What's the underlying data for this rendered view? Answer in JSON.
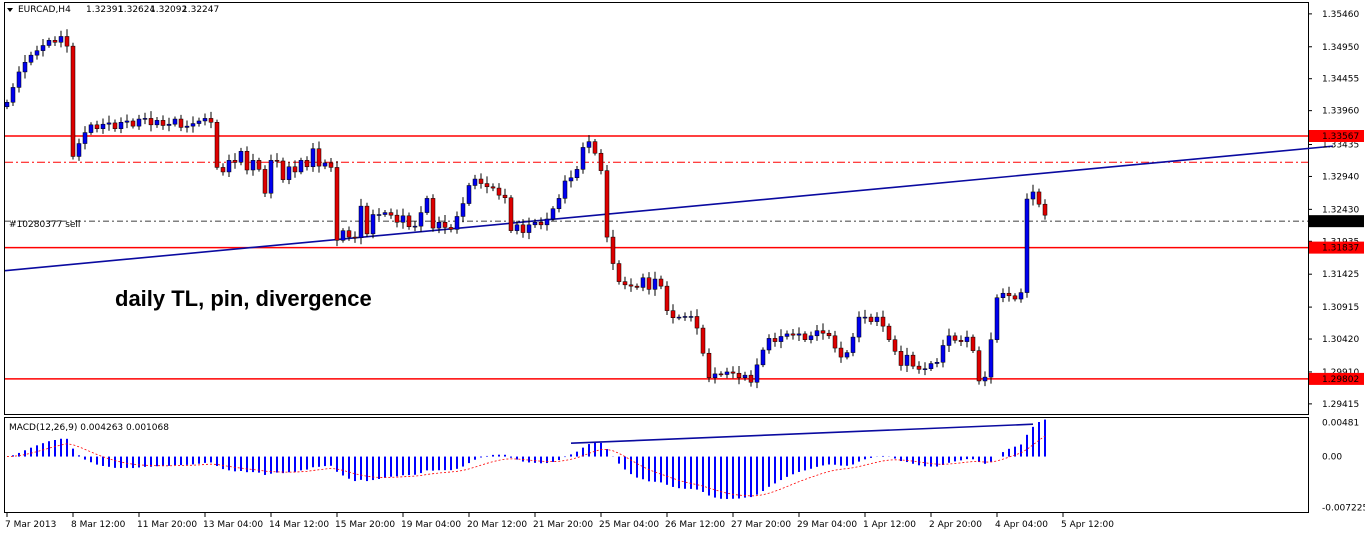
{
  "header": {
    "symbol": "EURCAD,H4",
    "open": "1.32391",
    "high": "1.32624",
    "low": "1.32092",
    "close": "1.32247"
  },
  "macd_header": "MACD(12,26,9) 0.004263 0.001068",
  "order_label": "#10280377 sell",
  "annotation": "daily TL, pin, divergence",
  "colors": {
    "bull": "#0000ee",
    "bear": "#dd0000",
    "hline": "#ff0000",
    "trendline": "#0a0aa0",
    "macd_hist": "#0000ff",
    "macd_signal": "#ff0000"
  },
  "chart_data": {
    "type": "candlestick",
    "price_ticks": [
      "1.35460",
      "1.34950",
      "1.34455",
      "1.33960",
      "1.33435",
      "1.32940",
      "1.32430",
      "1.31935",
      "1.31425",
      "1.30915",
      "1.30420",
      "1.29910",
      "1.29415"
    ],
    "ylim": [
      1.2932,
      1.3552
    ],
    "horizontal_levels": [
      {
        "price": 1.33567,
        "label": "1.33567",
        "style": "solid"
      },
      {
        "price": 1.3316,
        "label": "",
        "style": "dashdot"
      },
      {
        "price": 1.31837,
        "label": "1.31837",
        "style": "solid"
      },
      {
        "price": 1.29802,
        "label": "1.29802",
        "style": "solid"
      }
    ],
    "order_line": {
      "price": 1.32247,
      "label": "1.32247"
    },
    "trendline": {
      "from": {
        "bar": 0,
        "price": 1.3148
      },
      "to": {
        "bar": 221,
        "price": 1.3341
      }
    },
    "time_labels": [
      {
        "bar": 0,
        "text": "7 Mar 2013"
      },
      {
        "bar": 11,
        "text": "8 Mar 12:00"
      },
      {
        "bar": 22,
        "text": "11 Mar 20:00"
      },
      {
        "bar": 33,
        "text": "13 Mar 04:00"
      },
      {
        "bar": 44,
        "text": "14 Mar 12:00"
      },
      {
        "bar": 55,
        "text": "15 Mar 20:00"
      },
      {
        "bar": 66,
        "text": "19 Mar 04:00"
      },
      {
        "bar": 77,
        "text": "20 Mar 12:00"
      },
      {
        "bar": 88,
        "text": "21 Mar 20:00"
      },
      {
        "bar": 99,
        "text": "25 Mar 04:00"
      },
      {
        "bar": 110,
        "text": "26 Mar 12:00"
      },
      {
        "bar": 121,
        "text": "27 Mar 20:00"
      },
      {
        "bar": 132,
        "text": "29 Mar 04:00"
      },
      {
        "bar": 143,
        "text": "1 Apr 12:00"
      },
      {
        "bar": 154,
        "text": "2 Apr 20:00"
      },
      {
        "bar": 165,
        "text": "4 Apr 04:00"
      },
      {
        "bar": 176,
        "text": "5 Apr 12:00"
      }
    ],
    "closes": [
      1.3409,
      1.3432,
      1.3456,
      1.3471,
      1.3482,
      1.3489,
      1.3497,
      1.3505,
      1.3502,
      1.3511,
      1.3496,
      1.3325,
      1.3345,
      1.3362,
      1.3374,
      1.3368,
      1.3375,
      1.3377,
      1.3368,
      1.3378,
      1.338,
      1.3372,
      1.3383,
      1.3384,
      1.3374,
      1.3381,
      1.3373,
      1.3375,
      1.3383,
      1.337,
      1.3372,
      1.3376,
      1.338,
      1.3384,
      1.3378,
      1.3308,
      1.3301,
      1.3319,
      1.3316,
      1.3333,
      1.3304,
      1.3319,
      1.3305,
      1.3268,
      1.3319,
      1.3318,
      1.3289,
      1.3309,
      1.3301,
      1.3319,
      1.3309,
      1.3337,
      1.331,
      1.3315,
      1.3308,
      1.3195,
      1.321,
      1.32,
      1.3199,
      1.3248,
      1.3205,
      1.3235,
      1.3235,
      1.3238,
      1.3234,
      1.3223,
      1.3233,
      1.3216,
      1.3217,
      1.3238,
      1.326,
      1.3214,
      1.3223,
      1.3215,
      1.3212,
      1.3232,
      1.3252,
      1.328,
      1.329,
      1.3283,
      1.3278,
      1.3276,
      1.3265,
      1.3261,
      1.321,
      1.3219,
      1.3207,
      1.3219,
      1.3223,
      1.3219,
      1.3228,
      1.3244,
      1.326,
      1.3287,
      1.3292,
      1.3305,
      1.3339,
      1.3348,
      1.333,
      1.3303,
      1.32,
      1.3159,
      1.3131,
      1.3126,
      1.3124,
      1.3122,
      1.3137,
      1.3119,
      1.3135,
      1.3124,
      1.3086,
      1.3075,
      1.3076,
      1.3077,
      1.3077,
      1.3059,
      1.302,
      1.2982,
      1.2988,
      1.2987,
      1.2991,
      1.2989,
      1.2982,
      1.2986,
      1.2975,
      1.3002,
      1.3025,
      1.3043,
      1.3038,
      1.3046,
      1.305,
      1.3048,
      1.305,
      1.3041,
      1.3047,
      1.3055,
      1.3051,
      1.3047,
      1.3028,
      1.3014,
      1.3021,
      1.3045,
      1.3076,
      1.3076,
      1.3069,
      1.3076,
      1.3062,
      1.3041,
      1.3023,
      1.3001,
      1.3017,
      1.3,
      1.2995,
      1.2996,
      1.3004,
      1.3006,
      1.3032,
      1.3047,
      1.304,
      1.3038,
      1.3045,
      1.3024,
      1.2977,
      1.2983,
      1.3041,
      1.3106,
      1.3113,
      1.3109,
      1.3104,
      1.3114,
      1.3259,
      1.327,
      1.3251,
      1.3234
    ],
    "macd_ticks": [
      "0.00481",
      "0.00",
      "-0.007225"
    ],
    "macd_ylim": [
      -0.0076,
      0.0052
    ],
    "macd_divergence_line": {
      "from": {
        "bar": 94,
        "value": 0.0019
      },
      "to": {
        "bar": 171,
        "value": 0.0046
      }
    }
  }
}
